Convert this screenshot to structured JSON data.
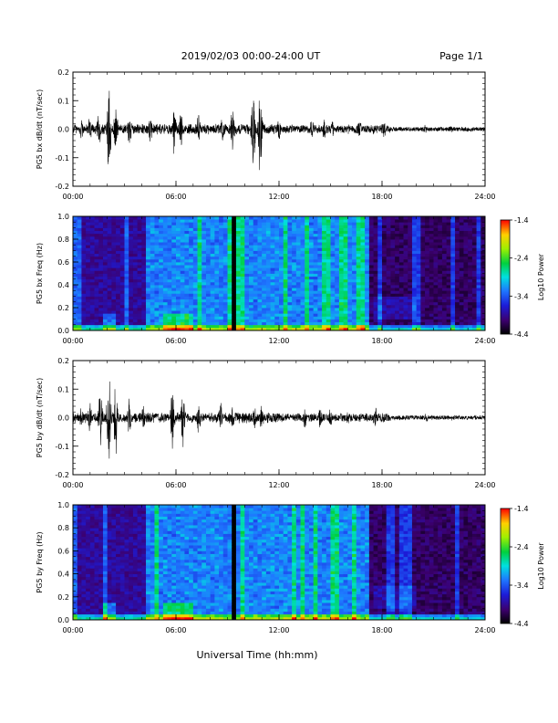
{
  "header": {
    "title": "2019/02/03  00:00-24:00 UT",
    "page": "Page 1/1"
  },
  "footer": {
    "xlabel": "Universal Time (hh:mm)"
  },
  "chart_data": [
    {
      "type": "line",
      "ylabel": "PG5 bx dB/dt (nT/sec)",
      "ylim": [
        -0.2,
        0.2
      ],
      "yticks": [
        "0.2",
        "0.1",
        "0.0",
        "-0.1",
        "-0.2"
      ],
      "ytick_values": [
        0.2,
        0.1,
        0.0,
        -0.1,
        -0.2
      ],
      "xticks": [
        "00:00",
        "06:00",
        "12:00",
        "18:00",
        "24:00"
      ],
      "xtick_values": [
        0,
        6,
        12,
        18,
        24
      ],
      "xlim": [
        0,
        24
      ],
      "bursts": [
        {
          "t": 0.5,
          "amp": 0.04
        },
        {
          "t": 1.0,
          "amp": 0.06
        },
        {
          "t": 1.5,
          "amp": 0.08
        },
        {
          "t": 2.1,
          "amp": 0.2
        },
        {
          "t": 2.5,
          "amp": 0.1
        },
        {
          "t": 3.3,
          "amp": 0.06
        },
        {
          "t": 4.5,
          "amp": 0.06
        },
        {
          "t": 5.9,
          "amp": 0.1
        },
        {
          "t": 6.3,
          "amp": 0.07
        },
        {
          "t": 7.3,
          "amp": 0.07
        },
        {
          "t": 8.7,
          "amp": 0.06
        },
        {
          "t": 9.3,
          "amp": 0.09
        },
        {
          "t": 10.5,
          "amp": 0.15
        },
        {
          "t": 10.9,
          "amp": 0.2
        },
        {
          "t": 12.0,
          "amp": 0.04
        },
        {
          "t": 13.9,
          "amp": 0.04
        },
        {
          "t": 14.6,
          "amp": 0.05
        },
        {
          "t": 15.1,
          "amp": 0.04
        },
        {
          "t": 16.1,
          "amp": 0.03
        },
        {
          "t": 16.7,
          "amp": 0.04
        },
        {
          "t": 17.5,
          "amp": 0.03
        },
        {
          "t": 18.1,
          "amp": 0.04
        },
        {
          "t": 20.5,
          "amp": 0.02
        },
        {
          "t": 22.0,
          "amp": 0.015
        }
      ],
      "noise": 0.02
    },
    {
      "type": "heatmap",
      "ylabel": "PG5 bx Freq (Hz)",
      "ylim": [
        0.0,
        1.0
      ],
      "yticks": [
        "1.0",
        "0.8",
        "0.6",
        "0.4",
        "0.2",
        "0.0"
      ],
      "ytick_values": [
        1.0,
        0.8,
        0.6,
        0.4,
        0.2,
        0.0
      ],
      "xticks": [
        "00:00",
        "06:00",
        "12:00",
        "18:00",
        "24:00"
      ],
      "xtick_values": [
        0,
        6,
        12,
        18,
        24
      ],
      "xlim": [
        0,
        24
      ],
      "colorbar": {
        "label": "Log10 Power",
        "ticks": [
          "-1.4",
          "-2.4",
          "-3.4",
          "-4.4"
        ],
        "tick_values": [
          -1.4,
          -2.4,
          -3.4,
          -4.4
        ],
        "range": [
          -4.4,
          -1.4
        ]
      },
      "gap_hour": 9.35
    },
    {
      "type": "line",
      "ylabel": "PG5 by dB/dt (nT/sec)",
      "ylim": [
        -0.2,
        0.2
      ],
      "yticks": [
        "0.2",
        "0.1",
        "0.0",
        "-0.1",
        "-0.2"
      ],
      "ytick_values": [
        0.2,
        0.1,
        0.0,
        -0.1,
        -0.2
      ],
      "xticks": [
        "00:00",
        "06:00",
        "12:00",
        "18:00",
        "24:00"
      ],
      "xtick_values": [
        0,
        6,
        12,
        18,
        24
      ],
      "xlim": [
        0,
        24
      ],
      "bursts": [
        {
          "t": 0.5,
          "amp": 0.05
        },
        {
          "t": 1.0,
          "amp": 0.07
        },
        {
          "t": 1.6,
          "amp": 0.12
        },
        {
          "t": 2.1,
          "amp": 0.2
        },
        {
          "t": 2.5,
          "amp": 0.15
        },
        {
          "t": 3.3,
          "amp": 0.08
        },
        {
          "t": 4.1,
          "amp": 0.05
        },
        {
          "t": 5.8,
          "amp": 0.13
        },
        {
          "t": 6.4,
          "amp": 0.12
        },
        {
          "t": 7.3,
          "amp": 0.07
        },
        {
          "t": 8.6,
          "amp": 0.06
        },
        {
          "t": 9.3,
          "amp": 0.05
        },
        {
          "t": 10.6,
          "amp": 0.05
        },
        {
          "t": 11.0,
          "amp": 0.06
        },
        {
          "t": 13.5,
          "amp": 0.04
        },
        {
          "t": 14.4,
          "amp": 0.05
        },
        {
          "t": 15.0,
          "amp": 0.04
        },
        {
          "t": 16.0,
          "amp": 0.03
        },
        {
          "t": 17.6,
          "amp": 0.04
        },
        {
          "t": 18.1,
          "amp": 0.03
        },
        {
          "t": 20.6,
          "amp": 0.02
        },
        {
          "t": 22.0,
          "amp": 0.015
        }
      ],
      "noise": 0.02
    },
    {
      "type": "heatmap",
      "ylabel": "PG5 by Freq (Hz)",
      "ylim": [
        0.0,
        1.0
      ],
      "yticks": [
        "1.0",
        "0.8",
        "0.6",
        "0.4",
        "0.2",
        "0.0"
      ],
      "ytick_values": [
        1.0,
        0.8,
        0.6,
        0.4,
        0.2,
        0.0
      ],
      "xticks": [
        "00:00",
        "06:00",
        "12:00",
        "18:00",
        "24:00"
      ],
      "xtick_values": [
        0,
        6,
        12,
        18,
        24
      ],
      "xlim": [
        0,
        24
      ],
      "colorbar": {
        "label": "Log10 Power",
        "ticks": [
          "-1.4",
          "-2.4",
          "-3.4",
          "-4.4"
        ],
        "tick_values": [
          -1.4,
          -2.4,
          -3.4,
          -4.4
        ],
        "range": [
          -4.4,
          -1.4
        ]
      },
      "gap_hour": 9.35
    }
  ]
}
